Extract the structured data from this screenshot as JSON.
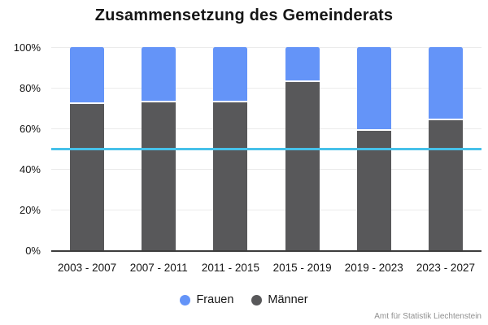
{
  "title": "Zusammensetzung des Gemeinderats",
  "source": "Amt für Statistik Liechtenstein",
  "colors": {
    "frauen": "#6494f8",
    "maenner": "#58585a",
    "reference_line": "#46c1ea",
    "grid": "#ebebeb",
    "axis": "#3d3d3d",
    "text": "#161616",
    "source_text": "#8f8f8f"
  },
  "chart_data": {
    "type": "bar",
    "stacked": true,
    "title": "Zusammensetzung des Gemeinderats",
    "categories": [
      "2003 - 2007",
      "2007 - 2011",
      "2011 - 2015",
      "2015 - 2019",
      "2019 - 2023",
      "2023 - 2027"
    ],
    "series": [
      {
        "name": "Frauen",
        "color": "#6494f8",
        "stack": "top",
        "values": [
          28,
          27,
          27,
          17,
          41,
          36
        ]
      },
      {
        "name": "Männer",
        "color": "#58585a",
        "stack": "bottom",
        "values": [
          72,
          73,
          73,
          83,
          59,
          64
        ]
      }
    ],
    "value_unit": "%",
    "xlabel": "",
    "ylabel": "",
    "ylim": [
      0,
      100
    ],
    "yticks": [
      0,
      20,
      40,
      60,
      80,
      100
    ],
    "ytick_suffix": "%",
    "grid": true,
    "legend_position": "bottom",
    "legend_order": [
      "Frauen",
      "Männer"
    ],
    "reference_line": {
      "value": 50,
      "color": "#46c1ea"
    },
    "annotation_source": "Amt für Statistik Liechtenstein"
  }
}
